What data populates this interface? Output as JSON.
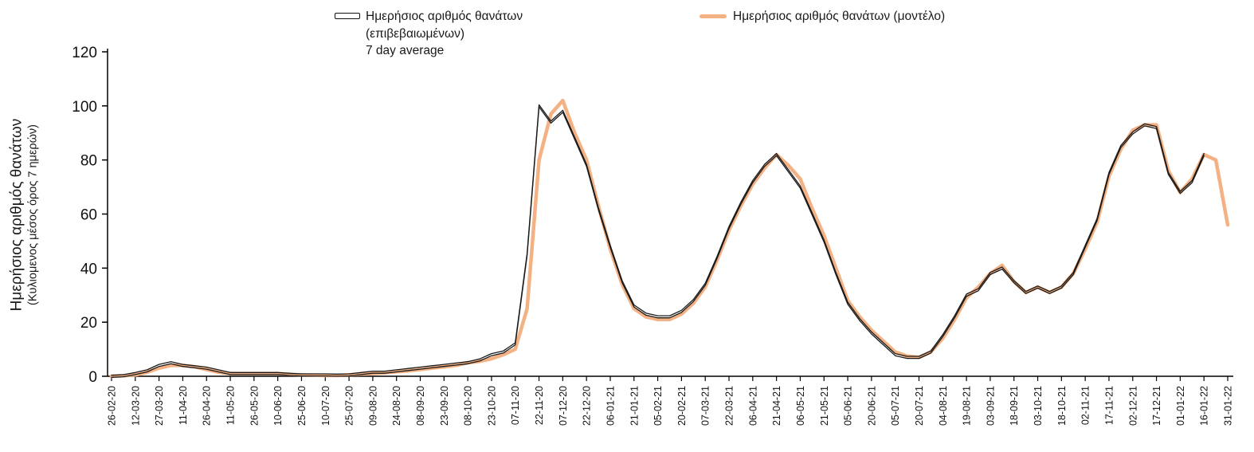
{
  "legend": {
    "confirmed": {
      "line1": "Ημερήσιος αριθμός θανάτων",
      "line2": "(επιβεβαιωμένων)",
      "line3": "7 day average"
    },
    "model": {
      "label": "Ημερήσιος αριθμός θανάτων (μοντέλο)"
    }
  },
  "y_axis": {
    "title": "Ημερήσιος αριθμός θανάτων",
    "subtitle": "(Κυλιομενος μέσος όρος 7 ημερών)"
  },
  "chart_data": {
    "type": "line",
    "title": "",
    "xlabel": "",
    "ylabel": "Ημερήσιος αριθμός θανάτων (Κυλιομενος μέσος όρος 7 ημερών)",
    "ylim": [
      0,
      120
    ],
    "yticks": [
      0,
      20,
      40,
      60,
      80,
      100,
      120
    ],
    "grid": false,
    "legend_position": "top",
    "x_tick_labels": [
      "26-02-20",
      "12-03-20",
      "27-03-20",
      "11-04-20",
      "26-04-20",
      "11-05-20",
      "26-05-20",
      "10-06-20",
      "25-06-20",
      "10-07-20",
      "25-07-20",
      "09-08-20",
      "24-08-20",
      "08-09-20",
      "23-09-20",
      "08-10-20",
      "23-10-20",
      "07-11-20",
      "22-11-20",
      "07-12-20",
      "22-12-20",
      "06-01-21",
      "21-01-21",
      "05-02-21",
      "20-02-21",
      "07-03-21",
      "22-03-21",
      "06-04-21",
      "21-04-21",
      "06-05-21",
      "21-05-21",
      "05-06-21",
      "20-06-21",
      "05-07-21",
      "20-07-21",
      "04-08-21",
      "19-08-21",
      "03-09-21",
      "18-09-21",
      "03-10-21",
      "18-10-21",
      "02-11-21",
      "17-11-21",
      "02-12-21",
      "17-12-21",
      "01-01-22",
      "16-01-22",
      "31-01-22"
    ],
    "x_sampling": "two data points per x-tick interval (~7.5 days apart); even indices fall on the tick dates",
    "series": [
      {
        "name": "Ημερήσιος αριθμός θανάτων (επιβεβαιωμένων) 7 day average",
        "color": "#1a1a1a",
        "line_style": "thin-double",
        "values": [
          0,
          0.2,
          1,
          2,
          4,
          5,
          4,
          3.5,
          3,
          2,
          1,
          1,
          1,
          1,
          1,
          0.7,
          0.5,
          0.5,
          0.5,
          0.4,
          0.5,
          1,
          1.5,
          1.5,
          2,
          2.5,
          3,
          3.5,
          4,
          4.5,
          5,
          6,
          8,
          9,
          12,
          45,
          100,
          94,
          98,
          88,
          78,
          62,
          48,
          35,
          26,
          23,
          22,
          22,
          24,
          28,
          34,
          44,
          55,
          64,
          72,
          78,
          82,
          76,
          70,
          60,
          50,
          38,
          27,
          21,
          16,
          12,
          8,
          7,
          7,
          9,
          15,
          22,
          30,
          32,
          38,
          40,
          35,
          31,
          33,
          31,
          33,
          38,
          48,
          58,
          75,
          85,
          90,
          93,
          92,
          75,
          68,
          72,
          82,
          null,
          null
        ]
      },
      {
        "name": "Ημερήσιος αριθμός θανάτων (μοντέλο)",
        "color": "#F4B183",
        "line_style": "thick",
        "values": [
          0,
          0.2,
          0.5,
          1.5,
          3,
          4,
          4,
          3.5,
          2.5,
          1.5,
          1,
          1,
          1,
          1,
          1,
          0.7,
          0.5,
          0.4,
          0.3,
          0.3,
          0.5,
          0.8,
          1,
          1.3,
          1.7,
          2,
          2.5,
          3,
          3.5,
          4,
          5,
          5.5,
          6.5,
          8,
          10,
          25,
          80,
          97,
          102,
          90,
          80,
          63,
          47,
          34,
          25,
          22,
          21,
          21,
          23,
          27,
          33,
          43,
          54,
          63,
          71,
          77,
          82,
          78,
          73,
          62,
          52,
          40,
          28,
          22,
          17,
          13,
          9,
          7.5,
          7,
          9,
          14,
          21,
          29,
          33,
          38,
          41,
          35,
          31,
          33,
          31,
          33,
          38,
          47,
          57,
          74,
          84,
          91,
          93,
          93,
          76,
          68,
          73,
          82,
          80,
          56
        ]
      }
    ]
  }
}
